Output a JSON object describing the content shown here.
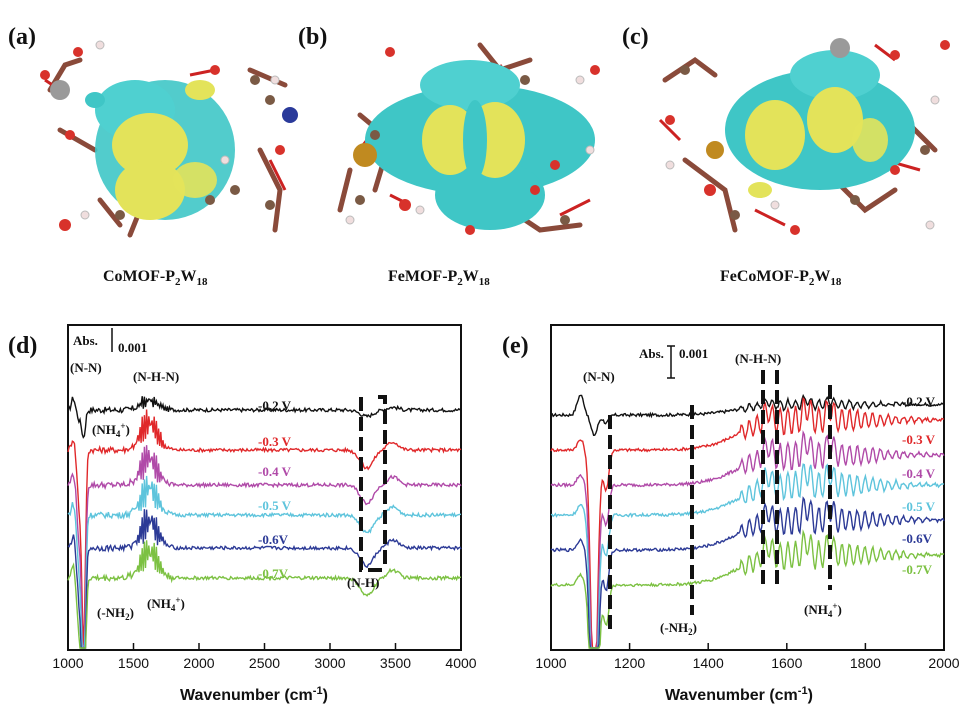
{
  "panels_top": [
    {
      "letter": "(a)",
      "title": "CoMOF-P",
      "sub1": "2",
      "mid": "W",
      "sub2": "18"
    },
    {
      "letter": "(b)",
      "title": "FeMOF-P",
      "sub1": "2",
      "mid": "W",
      "sub2": "18"
    },
    {
      "letter": "(c)",
      "title": "FeCoMOF-P",
      "sub1": "2",
      "mid": "W",
      "sub2": "18"
    }
  ],
  "colors": {
    "cyan": "#3fc6c6",
    "yellow": "#e3e35a",
    "bond_red": "#cc2222",
    "carbon": "#7a5a45",
    "hydrogen": "#f0dede",
    "oxygen": "#d8322b",
    "tungsten": "#9a9a9a",
    "iron": "#c08a20",
    "cobalt": "#2a3a9a"
  },
  "chart_data": [
    {
      "type": "line",
      "panel": "(d)",
      "xlabel": "Wavenumber (cm",
      "xlabel_sup": "-1",
      "xlabel_end": ")",
      "xlim": [
        1000,
        4000
      ],
      "xticks": [
        "1000",
        "1500",
        "2000",
        "2500",
        "3000",
        "3500",
        "4000"
      ],
      "scale": {
        "label": "Abs.",
        "value": "0.001"
      },
      "series": [
        {
          "name": "-0.2 V",
          "color": "#111111"
        },
        {
          "name": "-0.3 V",
          "color": "#e0282a"
        },
        {
          "name": "-0.4 V",
          "color": "#b04aa8"
        },
        {
          "name": "-0.5 V",
          "color": "#5ec4dc"
        },
        {
          "name": "-0.6V",
          "color": "#2c3a96"
        },
        {
          "name": "-0.7V",
          "color": "#7cc142"
        }
      ],
      "annotations": [
        {
          "text": "(N-N)"
        },
        {
          "text": "(NH",
          "sub": "4",
          "sup": "+",
          "end": ")"
        },
        {
          "text": "(N-H-N)"
        },
        {
          "text": "(-NH",
          "sub": "2",
          "end": ")"
        },
        {
          "text": "(NH",
          "sub": "4",
          "sup": "+",
          "end": ")",
          "id": "nh4b"
        },
        {
          "text": "(N-H)"
        }
      ]
    },
    {
      "type": "line",
      "panel": "(e)",
      "xlabel": "Wavenumber (cm",
      "xlabel_sup": "-1",
      "xlabel_end": ")",
      "xlim": [
        1000,
        2000
      ],
      "xticks": [
        "1000",
        "1200",
        "1400",
        "1600",
        "1800",
        "2000"
      ],
      "scale": {
        "label": "Abs.",
        "value": "0.001"
      },
      "series": [
        {
          "name": "-0.2 V",
          "color": "#111111"
        },
        {
          "name": "-0.3 V",
          "color": "#e0282a"
        },
        {
          "name": "-0.4 V",
          "color": "#b04aa8"
        },
        {
          "name": "-0.5 V",
          "color": "#5ec4dc"
        },
        {
          "name": "-0.6V",
          "color": "#2c3a96"
        },
        {
          "name": "-0.7V",
          "color": "#7cc142"
        }
      ],
      "annotations": [
        {
          "text": "(N-N)"
        },
        {
          "text": "(N-H-N)"
        },
        {
          "text": "(-NH",
          "sub": "2",
          "end": ")"
        },
        {
          "text": "(NH",
          "sub": "4",
          "sup": "+",
          "end": ")"
        }
      ]
    }
  ]
}
